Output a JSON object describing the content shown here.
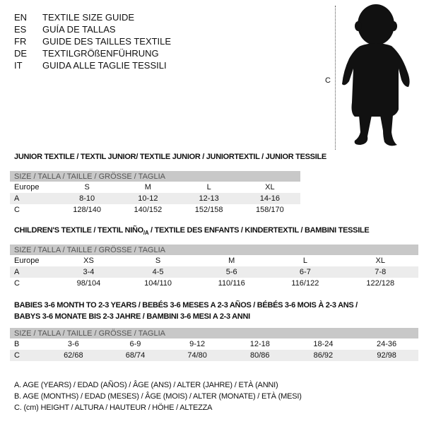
{
  "languages": [
    {
      "code": "EN",
      "text": "TEXTILE SIZE GUIDE"
    },
    {
      "code": "ES",
      "text": "GUÍA DE TALLAS"
    },
    {
      "code": "FR",
      "text": "GUIDE DES TAILLES TEXTILE"
    },
    {
      "code": "DE",
      "text": "TEXTILGRÖßENFÜHRUNG"
    },
    {
      "code": "IT",
      "text": "GUIDA ALLE TAGLIE TESSILI"
    }
  ],
  "figure": {
    "c_label": "C"
  },
  "header_label": "SIZE / TALLA / TAILLE / GRÖSSE / TAGLIA",
  "junior": {
    "title": "JUNIOR TEXTILE / TEXTIL JUNIOR/ TEXTILE JUNIOR / JUNIORTEXTIL / JUNIOR TESSILE",
    "rows": [
      {
        "label": "Europe",
        "values": [
          "S",
          "M",
          "L",
          "XL"
        ]
      },
      {
        "label": "A",
        "values": [
          "8-10",
          "10-12",
          "12-13",
          "14-16"
        ]
      },
      {
        "label": "C",
        "values": [
          "128/140",
          "140/152",
          "152/158",
          "158/170"
        ]
      }
    ]
  },
  "children": {
    "title_a": "CHILDREN'S TEXTILE / TEXTIL NIÑO",
    "title_sub": "/A",
    "title_b": " / TEXTILE DES ENFANTS / KINDERTEXTIL / BAMBINI TESSILE",
    "rows": [
      {
        "label": "Europe",
        "values": [
          "XS",
          "S",
          "M",
          "L",
          "XL"
        ]
      },
      {
        "label": "A",
        "values": [
          "3-4",
          "4-5",
          "5-6",
          "6-7",
          "7-8"
        ]
      },
      {
        "label": "C",
        "values": [
          "98/104",
          "104/110",
          "110/116",
          "116/122",
          "122/128"
        ]
      }
    ]
  },
  "babies": {
    "title_1": "BABIES 3-6 MONTH TO 2-3 YEARS / BEBÉS 3-6 MESES A 2-3 AÑOS / BÉBÉS 3-6 MOIS À 2-3 ANS /",
    "title_2": "BABYS 3-6 MONATE BIS 2-3 JAHRE / BAMBINI 3-6 MESI A 2-3 ANNI",
    "rows": [
      {
        "label": "B",
        "values": [
          "3-6",
          "6-9",
          "9-12",
          "12-18",
          "18-24",
          "24-36"
        ]
      },
      {
        "label": "C",
        "values": [
          "62/68",
          "68/74",
          "74/80",
          "80/86",
          "86/92",
          "92/98"
        ]
      }
    ]
  },
  "legend": [
    "A. AGE (YEARS) / EDAD (AÑOS) / ÂGE (ANS) / ALTER (JAHRE) / ETÀ (ANNI)",
    "B. AGE (MONTHS) / EDAD (MESES) / ÂGE (MOIS) / ALTER (MONATE) / ETÀ (MESI)",
    "C. (cm) HEIGHT / ALTURA / HAUTEUR / HÖHE / ALTEZZA"
  ]
}
